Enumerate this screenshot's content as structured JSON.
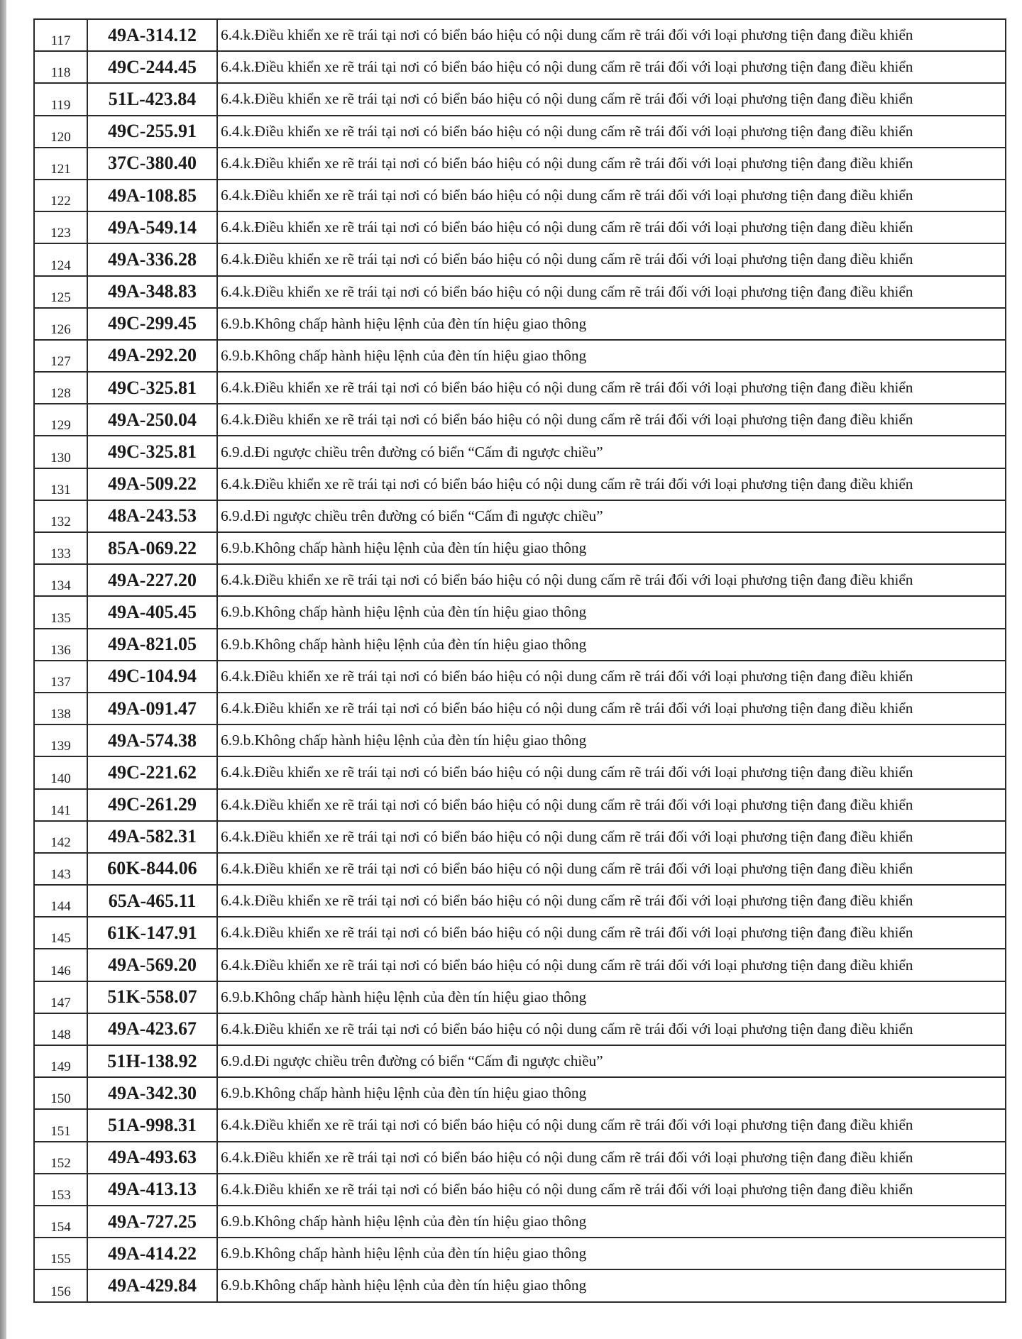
{
  "rows": [
    {
      "no": "117",
      "plate": "49A-314.12",
      "violation": "6.4.k.Điều khiển xe rẽ trái tại nơi có biển báo hiệu có nội dung cấm rẽ trái đối với loại phương tiện đang điều khiển"
    },
    {
      "no": "118",
      "plate": "49C-244.45",
      "violation": "6.4.k.Điều khiển xe rẽ trái tại nơi có biển báo hiệu có nội dung cấm rẽ trái đối với loại phương tiện đang điều khiển"
    },
    {
      "no": "119",
      "plate": "51L-423.84",
      "violation": "6.4.k.Điều khiển xe rẽ trái tại nơi có biển báo hiệu có nội dung cấm rẽ trái đối với loại phương tiện đang điều khiển"
    },
    {
      "no": "120",
      "plate": "49C-255.91",
      "violation": "6.4.k.Điều khiển xe rẽ trái tại nơi có biển báo hiệu có nội dung cấm rẽ trái đối với loại phương tiện đang điều khiển"
    },
    {
      "no": "121",
      "plate": "37C-380.40",
      "violation": "6.4.k.Điều khiển xe rẽ trái tại nơi có biển báo hiệu có nội dung cấm rẽ trái đối với loại phương tiện đang điều khiển"
    },
    {
      "no": "122",
      "plate": "49A-108.85",
      "violation": "6.4.k.Điều khiển xe rẽ trái tại nơi có biển báo hiệu có nội dung cấm rẽ trái đối với loại phương tiện đang điều khiển"
    },
    {
      "no": "123",
      "plate": "49A-549.14",
      "violation": "6.4.k.Điều khiển xe rẽ trái tại nơi có biển báo hiệu có nội dung cấm rẽ trái đối với loại phương tiện đang điều khiển"
    },
    {
      "no": "124",
      "plate": "49A-336.28",
      "violation": "6.4.k.Điều khiển xe rẽ trái tại nơi có biển báo hiệu có nội dung cấm rẽ trái đối với loại phương tiện đang điều khiển"
    },
    {
      "no": "125",
      "plate": "49A-348.83",
      "violation": "6.4.k.Điều khiển xe rẽ trái tại nơi có biển báo hiệu có nội dung cấm rẽ trái đối với loại phương tiện đang điều khiển"
    },
    {
      "no": "126",
      "plate": "49C-299.45",
      "violation": "6.9.b.Không chấp hành hiệu lệnh của đèn tín hiệu giao thông"
    },
    {
      "no": "127",
      "plate": "49A-292.20",
      "violation": "6.9.b.Không chấp hành hiệu lệnh của đèn tín hiệu giao thông"
    },
    {
      "no": "128",
      "plate": "49C-325.81",
      "violation": "6.4.k.Điều khiển xe rẽ trái tại nơi có biển báo hiệu có nội dung cấm rẽ trái đối với loại phương tiện đang điều khiển"
    },
    {
      "no": "129",
      "plate": "49A-250.04",
      "violation": "6.4.k.Điều khiển xe rẽ trái tại nơi có biển báo hiệu có nội dung cấm rẽ trái đối với loại phương tiện đang điều khiển"
    },
    {
      "no": "130",
      "plate": "49C-325.81",
      "violation": "6.9.d.Đi ngược chiều trên đường có biển “Cấm đi ngược chiều”"
    },
    {
      "no": "131",
      "plate": "49A-509.22",
      "violation": "6.4.k.Điều khiển xe rẽ trái tại nơi có biển báo hiệu có nội dung cấm rẽ trái đối với loại phương tiện đang điều khiển"
    },
    {
      "no": "132",
      "plate": "48A-243.53",
      "violation": "6.9.d.Đi ngược chiều trên đường có biển “Cấm đi ngược chiều”"
    },
    {
      "no": "133",
      "plate": "85A-069.22",
      "violation": "6.9.b.Không chấp hành hiệu lệnh của đèn tín hiệu giao thông"
    },
    {
      "no": "134",
      "plate": "49A-227.20",
      "violation": "6.4.k.Điều khiển xe rẽ trái tại nơi có biển báo hiệu có nội dung cấm rẽ trái đối với loại phương tiện đang điều khiển"
    },
    {
      "no": "135",
      "plate": "49A-405.45",
      "violation": "6.9.b.Không chấp hành hiệu lệnh của đèn tín hiệu giao thông"
    },
    {
      "no": "136",
      "plate": "49A-821.05",
      "violation": "6.9.b.Không chấp hành hiệu lệnh của đèn tín hiệu giao thông"
    },
    {
      "no": "137",
      "plate": "49C-104.94",
      "violation": "6.4.k.Điều khiển xe rẽ trái tại nơi có biển báo hiệu có nội dung cấm rẽ trái đối với loại phương tiện đang điều khiển"
    },
    {
      "no": "138",
      "plate": "49A-091.47",
      "violation": "6.4.k.Điều khiển xe rẽ trái tại nơi có biển báo hiệu có nội dung cấm rẽ trái đối với loại phương tiện đang điều khiển"
    },
    {
      "no": "139",
      "plate": "49A-574.38",
      "violation": "6.9.b.Không chấp hành hiệu lệnh của đèn tín hiệu giao thông"
    },
    {
      "no": "140",
      "plate": "49C-221.62",
      "violation": "6.4.k.Điều khiển xe rẽ trái tại nơi có biển báo hiệu có nội dung cấm rẽ trái đối với loại phương tiện đang điều khiển"
    },
    {
      "no": "141",
      "plate": "49C-261.29",
      "violation": "6.4.k.Điều khiển xe rẽ trái tại nơi có biển báo hiệu có nội dung cấm rẽ trái đối với loại phương tiện đang điều khiển"
    },
    {
      "no": "142",
      "plate": "49A-582.31",
      "violation": "6.4.k.Điều khiển xe rẽ trái tại nơi có biển báo hiệu có nội dung cấm rẽ trái đối với loại phương tiện đang điều khiển"
    },
    {
      "no": "143",
      "plate": "60K-844.06",
      "violation": "6.4.k.Điều khiển xe rẽ trái tại nơi có biển báo hiệu có nội dung cấm rẽ trái đối với loại phương tiện đang điều khiển"
    },
    {
      "no": "144",
      "plate": "65A-465.11",
      "violation": "6.4.k.Điều khiển xe rẽ trái tại nơi có biển báo hiệu có nội dung cấm rẽ trái đối với loại phương tiện đang điều khiển"
    },
    {
      "no": "145",
      "plate": "61K-147.91",
      "violation": "6.4.k.Điều khiển xe rẽ trái tại nơi có biển báo hiệu có nội dung cấm rẽ trái đối với loại phương tiện đang điều khiển"
    },
    {
      "no": "146",
      "plate": "49A-569.20",
      "violation": "6.4.k.Điều khiển xe rẽ trái tại nơi có biển báo hiệu có nội dung cấm rẽ trái đối với loại phương tiện đang điều khiển"
    },
    {
      "no": "147",
      "plate": "51K-558.07",
      "violation": "6.9.b.Không chấp hành hiệu lệnh của đèn tín hiệu giao thông"
    },
    {
      "no": "148",
      "plate": "49A-423.67",
      "violation": "6.4.k.Điều khiển xe rẽ trái tại nơi có biển báo hiệu có nội dung cấm rẽ trái đối với loại phương tiện đang điều khiển"
    },
    {
      "no": "149",
      "plate": "51H-138.92",
      "violation": "6.9.d.Đi ngược chiều trên đường có biển “Cấm đi ngược chiều”"
    },
    {
      "no": "150",
      "plate": "49A-342.30",
      "violation": "6.9.b.Không chấp hành hiệu lệnh của đèn tín hiệu giao thông"
    },
    {
      "no": "151",
      "plate": "51A-998.31",
      "violation": "6.4.k.Điều khiển xe rẽ trái tại nơi có biển báo hiệu có nội dung cấm rẽ trái đối với loại phương tiện đang điều khiển"
    },
    {
      "no": "152",
      "plate": "49A-493.63",
      "violation": "6.4.k.Điều khiển xe rẽ trái tại nơi có biển báo hiệu có nội dung cấm rẽ trái đối với loại phương tiện đang điều khiển"
    },
    {
      "no": "153",
      "plate": "49A-413.13",
      "violation": "6.4.k.Điều khiển xe rẽ trái tại nơi có biển báo hiệu có nội dung cấm rẽ trái đối với loại phương tiện đang điều khiển"
    },
    {
      "no": "154",
      "plate": "49A-727.25",
      "violation": "6.9.b.Không chấp hành hiệu lệnh của đèn tín hiệu giao thông"
    },
    {
      "no": "155",
      "plate": "49A-414.22",
      "violation": "6.9.b.Không chấp hành hiệu lệnh của đèn tín hiệu giao thông"
    },
    {
      "no": "156",
      "plate": "49A-429.84",
      "violation": "6.9.b.Không chấp hành hiệu lệnh của đèn tín hiệu giao thông"
    }
  ]
}
